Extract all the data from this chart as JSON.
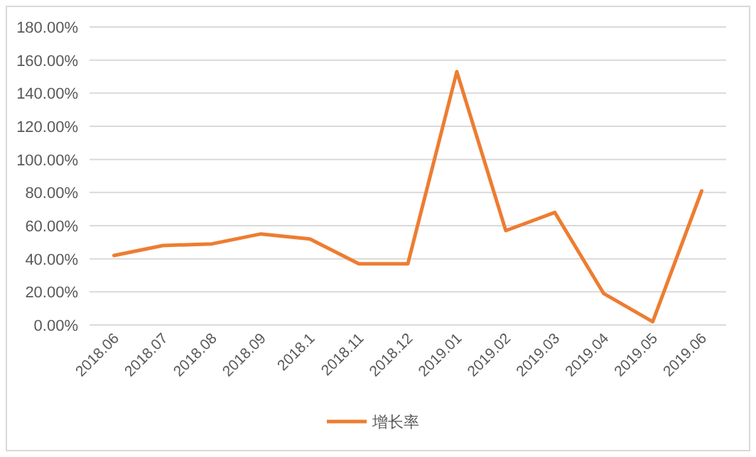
{
  "chart_data": {
    "type": "line",
    "categories": [
      "2018.06",
      "2018.07",
      "2018.08",
      "2018.09",
      "2018.1",
      "2018.11",
      "2018.12",
      "2019.01",
      "2019.02",
      "2019.03",
      "2019.04",
      "2019.05",
      "2019.06"
    ],
    "series": [
      {
        "name": "增长率",
        "color": "#ed7d31",
        "values": [
          42,
          48,
          49,
          55,
          52,
          37,
          37,
          153,
          57,
          68,
          19,
          2,
          81
        ]
      }
    ],
    "ylim": [
      0,
      180
    ],
    "yticks": [
      {
        "value": 0,
        "label": "0.00%"
      },
      {
        "value": 20,
        "label": "20.00%"
      },
      {
        "value": 40,
        "label": "40.00%"
      },
      {
        "value": 60,
        "label": "60.00%"
      },
      {
        "value": 80,
        "label": "80.00%"
      },
      {
        "value": 100,
        "label": "100.00%"
      },
      {
        "value": 120,
        "label": "120.00%"
      },
      {
        "value": 140,
        "label": "140.00%"
      },
      {
        "value": 160,
        "label": "160.00%"
      },
      {
        "value": 180,
        "label": "180.00%"
      }
    ],
    "grid": "y",
    "legend": "bottom",
    "marker": "none",
    "line_style": "solid"
  }
}
